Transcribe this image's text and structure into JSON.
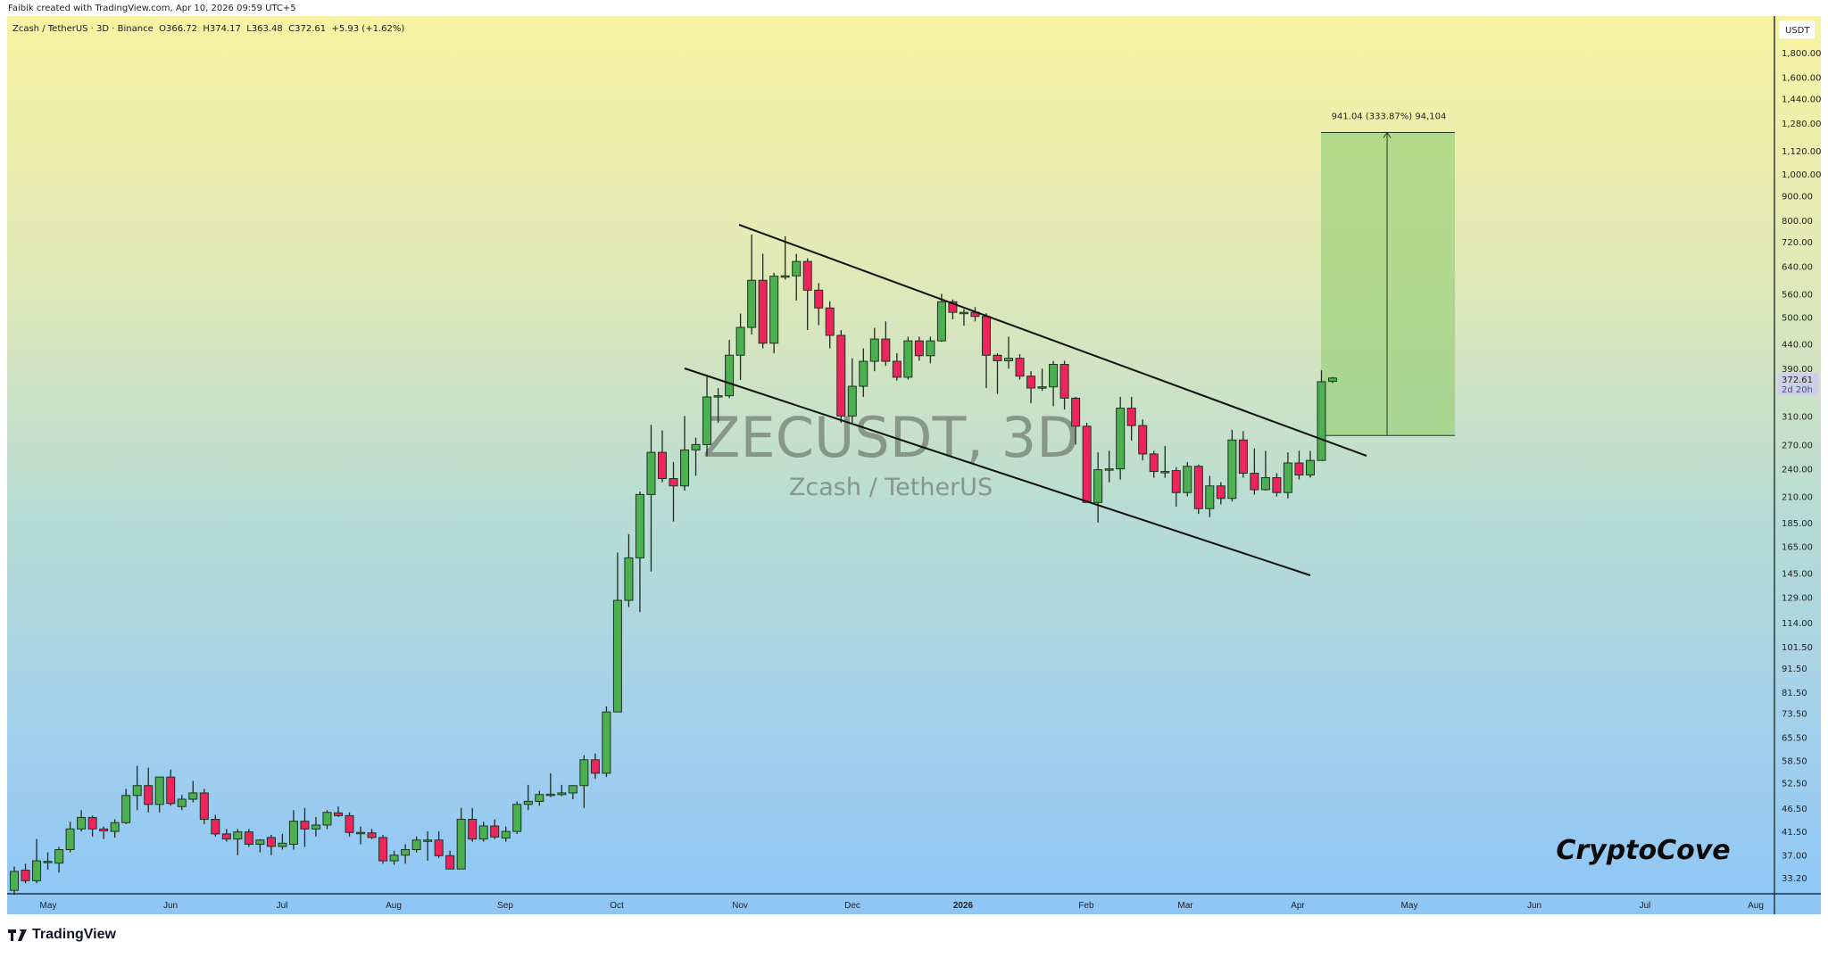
{
  "credit": "Faibik created with TradingView.com, Apr 10, 2026 09:59 UTC+5",
  "legend": {
    "symbol": "Zcash / TetherUS · 3D · Binance",
    "open": "O366.72",
    "high": "H374.17",
    "low": "L363.48",
    "close": "C372.61",
    "change": "+5.93 (+1.62%)"
  },
  "watermark": {
    "title": "ZECUSDT, 3D",
    "subtitle": "Zcash / TetherUS"
  },
  "author_tag": "CryptoCove",
  "brand": "TradingView",
  "colors": {
    "up": "#4caf50",
    "down": "#f0245c",
    "border": "#1c3320",
    "projection": "#9fd27f"
  },
  "chart_data": {
    "type": "candlestick",
    "scale": "log",
    "currency": "USDT",
    "ylim": [
      30,
      1900
    ],
    "y_ticks": [
      "1,800.00",
      "1,600.00",
      "1,440.00",
      "1,280.00",
      "1,120.00",
      "1,000.00",
      "900.00",
      "800.00",
      "720.00",
      "640.00",
      "560.00",
      "500.00",
      "440.00",
      "390.00",
      "310.00",
      "270.00",
      "240.00",
      "210.00",
      "185.00",
      "165.00",
      "145.00",
      "129.00",
      "114.00",
      "101.50",
      "91.50",
      "81.50",
      "73.50",
      "65.50",
      "58.50",
      "52.50",
      "46.50",
      "41.50",
      "37.00",
      "33.20"
    ],
    "x_ticks": [
      "May",
      "Jun",
      "Jul",
      "Aug",
      "Sep",
      "Oct",
      "Nov",
      "Dec",
      "2026",
      "Feb",
      "Mar",
      "Apr",
      "May",
      "Jun",
      "Jul",
      "Aug"
    ],
    "last_price": {
      "value": "372.61",
      "countdown": "2d 20h"
    },
    "projection": {
      "label": "941.04 (333.87%) 94,104",
      "from": 282,
      "to": 1223
    },
    "candles_ohlc": [
      [
        31.2,
        35,
        30.5,
        34.2
      ],
      [
        34.4,
        35.5,
        32.3,
        32.7
      ],
      [
        32.7,
        40,
        32.3,
        36
      ],
      [
        35.8,
        37.5,
        34.5,
        35.9
      ],
      [
        35.6,
        38.5,
        34,
        38
      ],
      [
        38,
        43.5,
        37.5,
        42
      ],
      [
        42,
        46,
        41.5,
        44.4
      ],
      [
        44.4,
        44.8,
        40.5,
        42
      ],
      [
        42,
        42.5,
        40,
        41.6
      ],
      [
        41.5,
        44,
        40.3,
        43.3
      ],
      [
        43.3,
        51,
        43,
        49.4
      ],
      [
        49.4,
        57,
        46,
        51.8
      ],
      [
        51.8,
        56.5,
        45.5,
        47.3
      ],
      [
        47.3,
        54,
        45.5,
        54
      ],
      [
        54,
        56,
        47,
        47.5
      ],
      [
        46.8,
        49.5,
        46,
        48.5
      ],
      [
        48.5,
        53,
        47.8,
        50
      ],
      [
        50,
        51,
        43,
        44
      ],
      [
        44,
        45,
        40.5,
        41
      ],
      [
        41,
        42,
        39.5,
        40
      ],
      [
        40,
        42,
        37,
        41.4
      ],
      [
        41.4,
        42,
        38.5,
        39
      ],
      [
        39,
        40,
        37.5,
        39.8
      ],
      [
        40.3,
        40.8,
        37,
        38.6
      ],
      [
        38.6,
        41,
        38,
        39.2
      ],
      [
        39,
        46,
        38,
        43.6
      ],
      [
        43.6,
        46.5,
        38.5,
        42
      ],
      [
        42,
        44.5,
        40.5,
        42.8
      ],
      [
        42.8,
        46,
        42,
        45.5
      ],
      [
        45.4,
        46.8,
        44.5,
        44.8
      ],
      [
        44.8,
        45.5,
        40.5,
        41.3
      ],
      [
        41.3,
        42.5,
        39,
        41.3
      ],
      [
        41.2,
        42,
        40,
        40.3
      ],
      [
        40.3,
        40.8,
        35.5,
        36
      ],
      [
        36,
        37.8,
        35.3,
        37
      ],
      [
        37,
        39,
        35.5,
        38
      ],
      [
        38,
        40.5,
        37.5,
        39.8
      ],
      [
        39.8,
        41.5,
        36,
        39.8
      ],
      [
        39.8,
        41.5,
        36.5,
        36.9
      ],
      [
        36.9,
        37.8,
        34.6,
        34.6
      ],
      [
        34.6,
        46.5,
        34.6,
        44
      ],
      [
        44,
        46.5,
        39.5,
        40
      ],
      [
        40,
        43.5,
        39.5,
        42.6
      ],
      [
        42.6,
        44,
        40,
        40.4
      ],
      [
        40.2,
        42.5,
        39.5,
        41.5
      ],
      [
        41.5,
        48,
        41,
        47.3
      ],
      [
        47.3,
        52,
        46,
        48
      ],
      [
        48,
        50.5,
        47,
        49.6
      ],
      [
        49.6,
        55,
        49,
        49.7
      ],
      [
        49.6,
        52,
        49.2,
        50
      ],
      [
        50,
        51.5,
        48.5,
        51.8
      ],
      [
        51.8,
        60,
        46.5,
        58.7
      ],
      [
        58.7,
        60.5,
        53.5,
        55
      ],
      [
        55,
        76,
        54,
        74
      ],
      [
        74,
        160,
        74,
        127
      ],
      [
        127,
        175,
        123,
        156
      ],
      [
        156,
        215,
        120,
        212
      ],
      [
        212,
        297,
        146,
        260
      ],
      [
        260,
        289,
        225,
        229
      ],
      [
        229,
        248,
        186,
        221
      ],
      [
        221,
        310,
        216,
        263
      ],
      [
        263,
        279,
        232,
        270
      ],
      [
        270,
        375,
        255,
        340
      ],
      [
        340,
        355,
        300,
        342
      ],
      [
        342,
        448,
        338,
        416
      ],
      [
        416,
        509,
        369,
        476
      ],
      [
        476,
        746,
        460,
        598
      ],
      [
        598,
        680,
        430,
        441
      ],
      [
        441,
        620,
        420,
        610
      ],
      [
        611,
        740,
        600,
        611
      ],
      [
        611,
        680,
        542,
        655
      ],
      [
        655,
        665,
        470,
        570
      ],
      [
        570,
        590,
        481,
        523
      ],
      [
        523,
        540,
        430,
        458
      ],
      [
        458,
        470,
        300,
        310
      ],
      [
        310,
        410,
        300,
        358
      ],
      [
        358,
        430,
        340,
        404
      ],
      [
        404,
        475,
        385,
        450
      ],
      [
        450,
        490,
        395,
        404
      ],
      [
        404,
        420,
        368,
        374
      ],
      [
        374,
        455,
        370,
        446
      ],
      [
        446,
        455,
        405,
        415
      ],
      [
        415,
        455,
        400,
        446
      ],
      [
        446,
        560,
        444,
        539
      ],
      [
        539,
        545,
        495,
        512
      ],
      [
        512,
        520,
        480,
        512
      ],
      [
        512,
        525,
        490,
        502
      ],
      [
        502,
        510,
        355,
        416
      ],
      [
        416,
        420,
        345,
        405
      ],
      [
        405,
        455,
        390,
        410
      ],
      [
        410,
        418,
        370,
        376
      ],
      [
        376,
        385,
        330,
        355
      ],
      [
        357,
        390,
        350,
        357
      ],
      [
        357,
        405,
        325,
        398
      ],
      [
        398,
        405,
        320,
        338
      ],
      [
        338,
        340,
        270,
        295
      ],
      [
        295,
        300,
        204,
        204
      ],
      [
        204,
        260,
        185,
        239
      ],
      [
        240,
        262,
        225,
        240
      ],
      [
        240,
        340,
        228,
        322
      ],
      [
        322,
        340,
        275,
        296
      ],
      [
        296,
        305,
        250,
        258
      ],
      [
        258,
        262,
        230,
        237
      ],
      [
        237,
        268,
        230,
        237
      ],
      [
        238,
        242,
        200,
        214
      ],
      [
        214,
        248,
        210,
        243
      ],
      [
        243,
        245,
        193,
        198
      ],
      [
        198,
        232,
        190,
        221
      ],
      [
        221,
        225,
        202,
        208
      ],
      [
        208,
        290,
        205,
        276
      ],
      [
        276,
        288,
        230,
        235
      ],
      [
        235,
        265,
        212,
        217
      ],
      [
        217,
        262,
        216,
        230
      ],
      [
        230,
        235,
        210,
        214
      ],
      [
        214,
        260,
        208,
        247
      ],
      [
        247,
        262,
        228,
        233
      ],
      [
        233,
        262,
        230,
        250
      ],
      [
        250,
        387,
        250,
        366
      ],
      [
        366.72,
        374.17,
        363.48,
        372.61
      ]
    ]
  }
}
